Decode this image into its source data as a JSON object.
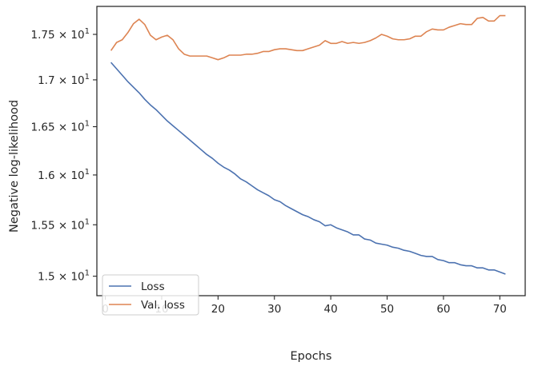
{
  "chart_data": {
    "type": "line",
    "title": "",
    "xlabel": "Epochs",
    "ylabel": "Negative log-likelihood",
    "xlim": [
      -1.5,
      74.5
    ],
    "ylim": [
      14.815,
      17.815
    ],
    "yscale": "log",
    "grid": false,
    "legend_position": "bottom-left",
    "x_ticks": [
      {
        "value": 0,
        "label": "0"
      },
      {
        "value": 10,
        "label": "10"
      },
      {
        "value": 20,
        "label": "20"
      },
      {
        "value": 30,
        "label": "30"
      },
      {
        "value": 40,
        "label": "40"
      },
      {
        "value": 50,
        "label": "50"
      },
      {
        "value": 60,
        "label": "60"
      },
      {
        "value": 70,
        "label": "70"
      }
    ],
    "y_ticks": [
      {
        "value": 15.0,
        "mantissa": "1.5",
        "exponent": "1"
      },
      {
        "value": 15.5,
        "mantissa": "1.55",
        "exponent": "1"
      },
      {
        "value": 16.0,
        "mantissa": "1.6",
        "exponent": "1"
      },
      {
        "value": 16.5,
        "mantissa": "1.65",
        "exponent": "1"
      },
      {
        "value": 17.0,
        "mantissa": "1.7",
        "exponent": "1"
      },
      {
        "value": 17.5,
        "mantissa": "1.75",
        "exponent": "1"
      }
    ],
    "y_tick_times": "×",
    "y_tick_base": "10",
    "x": [
      1,
      2,
      3,
      4,
      5,
      6,
      7,
      8,
      9,
      10,
      11,
      12,
      13,
      14,
      15,
      16,
      17,
      18,
      19,
      20,
      21,
      22,
      23,
      24,
      25,
      26,
      27,
      28,
      29,
      30,
      31,
      32,
      33,
      34,
      35,
      36,
      37,
      38,
      39,
      40,
      41,
      42,
      43,
      44,
      45,
      46,
      47,
      48,
      49,
      50,
      51,
      52,
      53,
      54,
      55,
      56,
      57,
      58,
      59,
      60,
      61,
      62,
      63,
      64,
      65,
      66,
      67,
      68,
      69,
      70,
      71
    ],
    "series": [
      {
        "name": "Loss",
        "color": "#4c72b0",
        "values": [
          17.19,
          17.12,
          17.05,
          16.98,
          16.92,
          16.86,
          16.79,
          16.73,
          16.68,
          16.62,
          16.56,
          16.51,
          16.46,
          16.41,
          16.36,
          16.31,
          16.26,
          16.21,
          16.17,
          16.12,
          16.08,
          16.05,
          16.01,
          15.96,
          15.93,
          15.89,
          15.85,
          15.82,
          15.79,
          15.75,
          15.73,
          15.69,
          15.66,
          15.63,
          15.6,
          15.58,
          15.55,
          15.53,
          15.49,
          15.5,
          15.47,
          15.45,
          15.43,
          15.4,
          15.4,
          15.36,
          15.35,
          15.32,
          15.31,
          15.3,
          15.28,
          15.27,
          15.25,
          15.24,
          15.22,
          15.2,
          15.19,
          15.19,
          15.16,
          15.15,
          15.13,
          15.13,
          15.11,
          15.1,
          15.1,
          15.08,
          15.08,
          15.06,
          15.06,
          15.04,
          15.02
        ]
      },
      {
        "name": "Val. loss",
        "color": "#dd8452",
        "values": [
          17.32,
          17.41,
          17.44,
          17.52,
          17.62,
          17.67,
          17.61,
          17.49,
          17.44,
          17.47,
          17.49,
          17.44,
          17.34,
          17.28,
          17.26,
          17.26,
          17.26,
          17.26,
          17.24,
          17.22,
          17.24,
          17.27,
          17.27,
          17.27,
          17.28,
          17.28,
          17.29,
          17.31,
          17.31,
          17.33,
          17.34,
          17.34,
          17.33,
          17.32,
          17.32,
          17.34,
          17.36,
          17.38,
          17.43,
          17.4,
          17.4,
          17.42,
          17.4,
          17.41,
          17.4,
          17.41,
          17.43,
          17.46,
          17.5,
          17.48,
          17.45,
          17.44,
          17.44,
          17.45,
          17.48,
          17.48,
          17.53,
          17.56,
          17.55,
          17.55,
          17.58,
          17.6,
          17.62,
          17.61,
          17.61,
          17.68,
          17.69,
          17.65,
          17.65,
          17.71,
          17.71
        ]
      }
    ]
  }
}
